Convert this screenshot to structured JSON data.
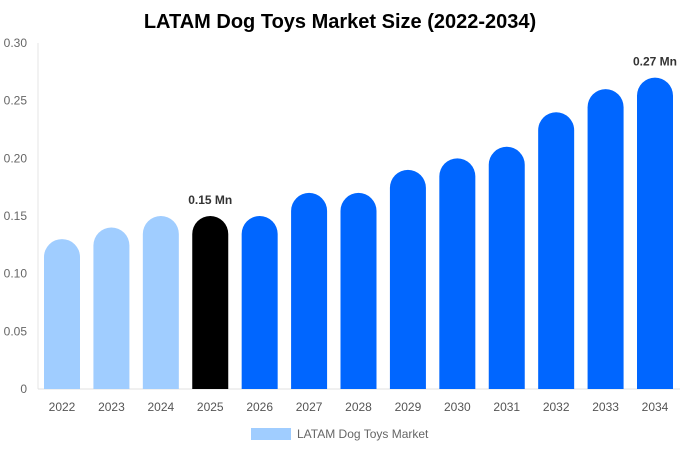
{
  "chart_data": {
    "type": "bar",
    "title": "LATAM Dog Toys Market Size (2022-2034)",
    "xlabel": "",
    "ylabel": "",
    "ylim": [
      0,
      0.3
    ],
    "yticks": [
      "0",
      "0.05",
      "0.10",
      "0.15",
      "0.20",
      "0.25",
      "0.30"
    ],
    "categories": [
      "2022",
      "2023",
      "2024",
      "2025",
      "2026",
      "2027",
      "2028",
      "2029",
      "2030",
      "2031",
      "2032",
      "2033",
      "2034"
    ],
    "series": [
      {
        "name": "LATAM Dog Toys Market",
        "values": [
          0.13,
          0.14,
          0.15,
          0.15,
          0.15,
          0.17,
          0.17,
          0.19,
          0.2,
          0.21,
          0.24,
          0.26,
          0.27
        ]
      }
    ],
    "bar_colors": [
      "#a0cdff",
      "#a0cdff",
      "#a0cdff",
      "#000000",
      "#0066ff",
      "#0066ff",
      "#0066ff",
      "#0066ff",
      "#0066ff",
      "#0066ff",
      "#0066ff",
      "#0066ff",
      "#0066ff"
    ],
    "data_labels": [
      {
        "category": "2025",
        "text": "0.15 Mn"
      },
      {
        "category": "2034",
        "text": "0.27 Mn"
      }
    ],
    "legend": {
      "position": "bottom",
      "color": "#a0cdff"
    },
    "grid": false
  }
}
